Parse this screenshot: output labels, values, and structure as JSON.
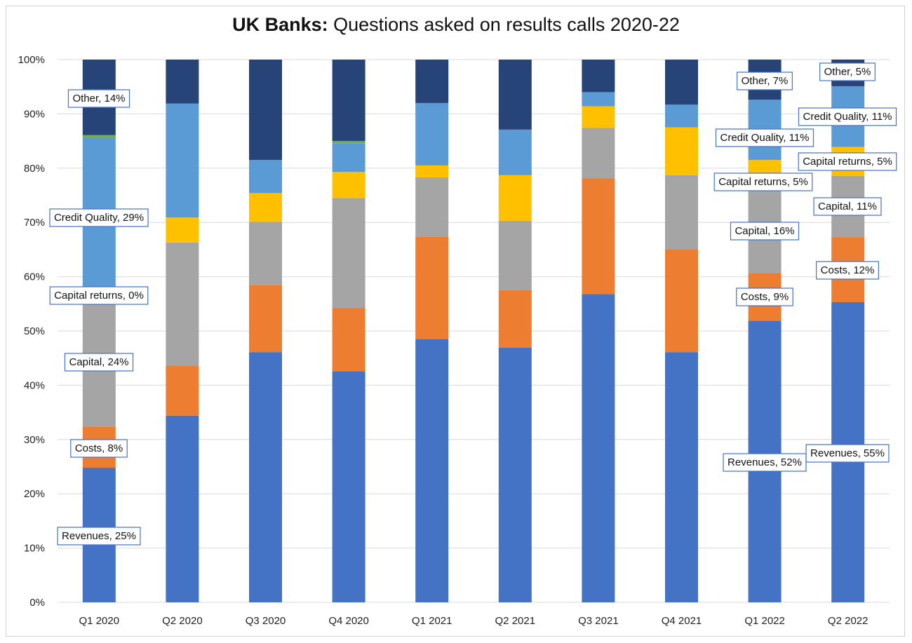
{
  "chart_data": {
    "type": "bar",
    "stacked": true,
    "title_bold": "UK Banks:",
    "title_rest": " Questions asked on results calls 2020-22",
    "categories": [
      "Q1 2020",
      "Q2 2020",
      "Q3 2020",
      "Q4 2020",
      "Q1 2021",
      "Q2 2021",
      "Q3 2021",
      "Q4 2021",
      "Q1 2022",
      "Q2 2022"
    ],
    "ylim": [
      0,
      100
    ],
    "yticks": [
      "0%",
      "10%",
      "20%",
      "30%",
      "40%",
      "50%",
      "60%",
      "70%",
      "80%",
      "90%",
      "100%"
    ],
    "grid": true,
    "series": [
      {
        "name": "Revenues",
        "color": "#4472c4",
        "values": [
          24.8,
          34.4,
          46.1,
          42.6,
          48.5,
          46.9,
          56.8,
          46.1,
          51.9,
          55.3
        ]
      },
      {
        "name": "Costs",
        "color": "#ed7d31",
        "values": [
          7.6,
          9.2,
          12.4,
          11.6,
          18.9,
          10.6,
          21.3,
          19.0,
          8.8,
          12.0
        ]
      },
      {
        "name": "Capital",
        "color": "#a5a5a5",
        "values": [
          23.9,
          22.7,
          11.6,
          20.3,
          10.9,
          12.8,
          9.3,
          13.6,
          15.8,
          11.3
        ]
      },
      {
        "name": "Capital returns",
        "color": "#ffc000",
        "values": [
          0.0,
          4.6,
          5.3,
          4.8,
          2.2,
          8.4,
          4.0,
          8.8,
          5.0,
          5.3
        ]
      },
      {
        "name": "Credit Quality",
        "color": "#5b9bd5",
        "values": [
          29.3,
          21.0,
          6.1,
          5.3,
          11.5,
          8.4,
          2.6,
          4.2,
          11.1,
          11.2
        ]
      },
      {
        "name": "Other small",
        "color": "#70ad47",
        "values": [
          0.5,
          0.0,
          0.0,
          0.4,
          0.0,
          0.0,
          0.0,
          0.0,
          0.0,
          0.0
        ]
      },
      {
        "name": "Other",
        "color": "#264478",
        "values": [
          13.9,
          8.1,
          18.5,
          15.0,
          8.0,
          12.9,
          6.0,
          8.3,
          7.4,
          4.9
        ]
      }
    ],
    "data_labels": [
      {
        "category": 0,
        "series": "Revenues",
        "text": "Revenues, 25%"
      },
      {
        "category": 0,
        "series": "Costs",
        "text": "Costs, 8%"
      },
      {
        "category": 0,
        "series": "Capital",
        "text": "Capital, 24%"
      },
      {
        "category": 0,
        "series": "Capital returns",
        "text": "Capital returns, 0%"
      },
      {
        "category": 0,
        "series": "Credit Quality",
        "text": "Credit Quality, 29%"
      },
      {
        "category": 0,
        "series": "Other",
        "text": "Other, 14%"
      },
      {
        "category": 8,
        "series": "Revenues",
        "text": "Revenues, 52%"
      },
      {
        "category": 8,
        "series": "Costs",
        "text": "Costs, 9%"
      },
      {
        "category": 8,
        "series": "Capital",
        "text": "Capital, 16%"
      },
      {
        "category": 8,
        "series": "Capital returns",
        "text": "Capital returns, 5%"
      },
      {
        "category": 8,
        "series": "Credit Quality",
        "text": "Credit Quality, 11%"
      },
      {
        "category": 8,
        "series": "Other",
        "text": "Other, 7%"
      },
      {
        "category": 9,
        "series": "Revenues",
        "text": "Revenues, 55%"
      },
      {
        "category": 9,
        "series": "Costs",
        "text": "Costs, 12%"
      },
      {
        "category": 9,
        "series": "Capital",
        "text": "Capital, 11%"
      },
      {
        "category": 9,
        "series": "Capital returns",
        "text": "Capital returns, 5%"
      },
      {
        "category": 9,
        "series": "Credit Quality",
        "text": "Credit Quality, 11%"
      },
      {
        "category": 9,
        "series": "Other",
        "text": "Other, 5%"
      }
    ]
  }
}
